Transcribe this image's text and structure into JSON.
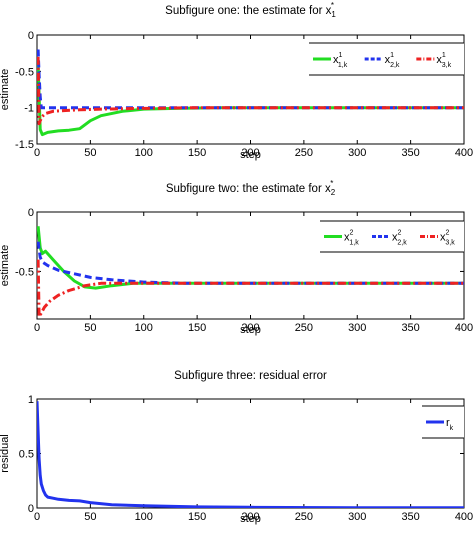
{
  "chart_data": [
    {
      "type": "line",
      "title": "Subfigure one: the estimate for x",
      "title_sub": "1",
      "title_sup": "*",
      "xlabel": "step",
      "ylabel": "estimate",
      "xlim": [
        0,
        400
      ],
      "ylim": [
        -1.5,
        0
      ],
      "xticks": [
        "0",
        "50",
        "100",
        "150",
        "200",
        "250",
        "300",
        "350",
        "400"
      ],
      "yticks": [
        "0",
        "-0.5",
        "-1",
        "-1.5"
      ],
      "ytick_values": [
        0,
        -0.5,
        -1,
        -1.5
      ],
      "grid": false,
      "legend_position": "top-right",
      "series": [
        {
          "name": "x",
          "legend_sup": "1",
          "legend_sub": "1,k",
          "color": "#22dd22",
          "style": "solid",
          "x": [
            1,
            3,
            5,
            10,
            20,
            30,
            40,
            50,
            60,
            80,
            100,
            130,
            170,
            220,
            300,
            400
          ],
          "y": [
            -0.4,
            -1.3,
            -1.37,
            -1.34,
            -1.32,
            -1.31,
            -1.29,
            -1.18,
            -1.11,
            -1.05,
            -1.02,
            -1.01,
            -1.0,
            -1.0,
            -1.0,
            -1.0
          ]
        },
        {
          "name": "x",
          "legend_sup": "1",
          "legend_sub": "2,k",
          "color": "#2233ee",
          "style": "dashed",
          "x": [
            1,
            2,
            3,
            4,
            6,
            10,
            20,
            50,
            100,
            200,
            400
          ],
          "y": [
            -0.2,
            -0.55,
            -0.85,
            -1.0,
            -1.0,
            -1.0,
            -1.0,
            -1.0,
            -1.0,
            -1.0,
            -1.0
          ]
        },
        {
          "name": "x",
          "legend_sup": "1",
          "legend_sub": "3,k",
          "color": "#ee2222",
          "style": "dashdot",
          "x": [
            1,
            2,
            3,
            5,
            8,
            15,
            25,
            40,
            60,
            100,
            150,
            250,
            400
          ],
          "y": [
            -0.3,
            -1.22,
            -1.18,
            -1.12,
            -1.08,
            -1.05,
            -1.04,
            -1.03,
            -1.02,
            -1.01,
            -1.0,
            -1.0,
            -1.0
          ]
        }
      ]
    },
    {
      "type": "line",
      "title": "Subfigure two: the estimate for x",
      "title_sub": "2",
      "title_sup": "*",
      "xlabel": "step",
      "ylabel": "estimate",
      "xlim": [
        0,
        400
      ],
      "ylim": [
        -0.9,
        0
      ],
      "xticks": [
        "0",
        "50",
        "100",
        "150",
        "200",
        "250",
        "300",
        "350",
        "400"
      ],
      "yticks": [
        "0",
        "-0.5"
      ],
      "ytick_values": [
        0,
        -0.5
      ],
      "grid": false,
      "legend_position": "top-right",
      "series": [
        {
          "name": "x",
          "legend_sup": "2",
          "legend_sub": "1,k",
          "color": "#22dd22",
          "style": "solid",
          "x": [
            1,
            3,
            5,
            8,
            15,
            25,
            35,
            45,
            55,
            70,
            90,
            120,
            160,
            220,
            300,
            400
          ],
          "y": [
            -0.12,
            -0.3,
            -0.35,
            -0.33,
            -0.4,
            -0.5,
            -0.58,
            -0.63,
            -0.64,
            -0.62,
            -0.6,
            -0.6,
            -0.6,
            -0.6,
            -0.6,
            -0.6
          ]
        },
        {
          "name": "x",
          "legend_sup": "2",
          "legend_sub": "2,k",
          "color": "#2233ee",
          "style": "dashed",
          "x": [
            1,
            3,
            5,
            10,
            20,
            35,
            50,
            70,
            100,
            140,
            200,
            300,
            400
          ],
          "y": [
            -0.25,
            -0.38,
            -0.42,
            -0.45,
            -0.49,
            -0.52,
            -0.55,
            -0.57,
            -0.59,
            -0.6,
            -0.6,
            -0.6,
            -0.6
          ]
        },
        {
          "name": "x",
          "legend_sup": "2",
          "legend_sub": "3,k",
          "color": "#ee2222",
          "style": "dashdot",
          "x": [
            1,
            2,
            4,
            7,
            12,
            20,
            30,
            45,
            60,
            80,
            110,
            150,
            200,
            300,
            400
          ],
          "y": [
            -0.4,
            -0.88,
            -0.85,
            -0.8,
            -0.75,
            -0.7,
            -0.66,
            -0.62,
            -0.6,
            -0.6,
            -0.6,
            -0.6,
            -0.6,
            -0.6,
            -0.6
          ]
        }
      ]
    },
    {
      "type": "line",
      "title": "Subfigure three: residual error",
      "xlabel": "step",
      "ylabel": "residual",
      "xlim": [
        0,
        400
      ],
      "ylim": [
        0,
        1
      ],
      "xticks": [
        "0",
        "50",
        "100",
        "150",
        "200",
        "250",
        "300",
        "350",
        "400"
      ],
      "yticks": [
        "1",
        "0.5",
        "0"
      ],
      "ytick_values": [
        1,
        0.5,
        0
      ],
      "grid": false,
      "legend_position": "top-right",
      "series": [
        {
          "name": "r",
          "legend_sub": "k",
          "color": "#2233ee",
          "style": "solid",
          "x": [
            0,
            1,
            2,
            3,
            4,
            6,
            8,
            10,
            15,
            20,
            30,
            40,
            50,
            70,
            100,
            150,
            200,
            300,
            400
          ],
          "y": [
            0.98,
            0.7,
            0.45,
            0.3,
            0.22,
            0.16,
            0.12,
            0.1,
            0.09,
            0.08,
            0.07,
            0.065,
            0.05,
            0.03,
            0.02,
            0.01,
            0.006,
            0.003,
            0.002
          ]
        }
      ]
    }
  ]
}
